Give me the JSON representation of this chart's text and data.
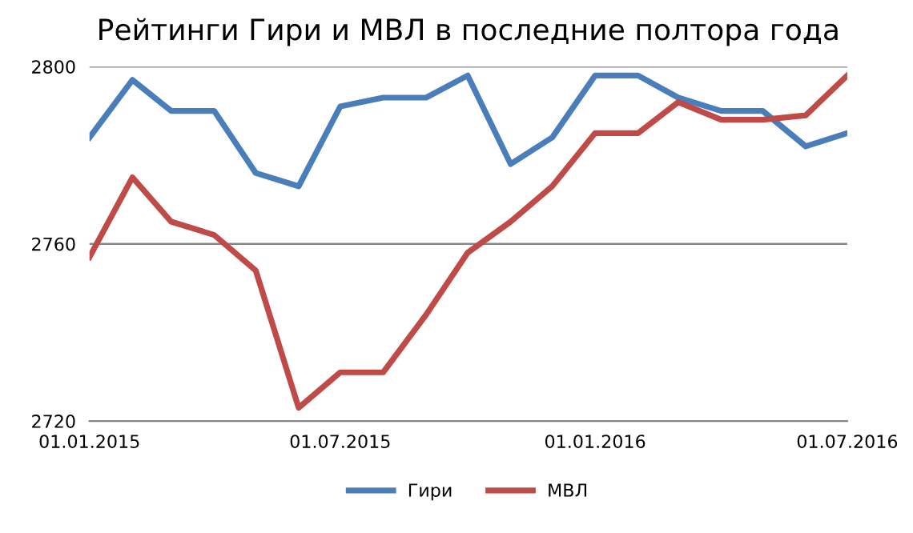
{
  "chart_data": {
    "type": "line",
    "title": "Рейтинги Гири и МВЛ в последние полтора года",
    "x": [
      "2015-01-01",
      "2015-02-01",
      "2015-03-01",
      "2015-04-01",
      "2015-05-01",
      "2015-06-01",
      "2015-07-01",
      "2015-08-01",
      "2015-09-01",
      "2015-10-01",
      "2015-11-01",
      "2015-12-01",
      "2016-01-01",
      "2016-02-01",
      "2016-03-01",
      "2016-04-01",
      "2016-05-01",
      "2016-06-01",
      "2016-07-01"
    ],
    "series": [
      {
        "name": "Гири",
        "color": "#4a7ebb",
        "values": [
          2784,
          2797,
          2790,
          2790,
          2776,
          2773,
          2791,
          2793,
          2793,
          2798,
          2778,
          2784,
          2798,
          2798,
          2793,
          2790,
          2790,
          2782,
          2785
        ]
      },
      {
        "name": "МВЛ",
        "color": "#be4b48",
        "values": [
          2757,
          2775,
          2765,
          2762,
          2754,
          2723,
          2731,
          2731,
          2744,
          2758,
          2765,
          2773,
          2785,
          2785,
          2792,
          2788,
          2788,
          2789,
          2798
        ]
      }
    ],
    "xlim": [
      "2015-01-01",
      "2016-07-01"
    ],
    "xticks": [
      {
        "value": "2015-01-01",
        "label": "01.01.2015"
      },
      {
        "value": "2015-07-01",
        "label": "01.07.2015"
      },
      {
        "value": "2016-01-01",
        "label": "01.01.2016"
      },
      {
        "value": "2016-07-01",
        "label": "01.07.2016"
      }
    ],
    "ylim": [
      2720,
      2800
    ],
    "yticks": [
      2720,
      2760,
      2800
    ],
    "grid": "y",
    "legend": "bottom",
    "marker": "none",
    "line_style": "solid"
  }
}
